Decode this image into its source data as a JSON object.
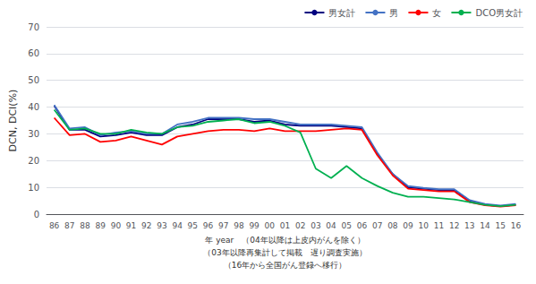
{
  "chart_data": {
    "type": "line",
    "ylabel": "DCN, DCI(%)",
    "xlabel": "年 year　（04年以降は上皮内がんを除く）\n（03年以降再集計して掲載　遅り調査実施）\n（16年から全国がん登録へ移行）",
    "categories": [
      "86",
      "87",
      "88",
      "89",
      "90",
      "91",
      "92",
      "93",
      "94",
      "95",
      "96",
      "97",
      "98",
      "99",
      "00",
      "01",
      "02",
      "03",
      "04",
      "05",
      "06",
      "07",
      "08",
      "09",
      "10",
      "11",
      "12",
      "13",
      "14",
      "15",
      "16"
    ],
    "series": [
      {
        "name": "男女計",
        "color": "#000080",
        "values": [
          40.5,
          31.5,
          31.5,
          29.0,
          29.5,
          30.5,
          29.5,
          29.5,
          32.5,
          33.5,
          35.5,
          35.5,
          35.5,
          34.5,
          35.0,
          33.5,
          33.0,
          33.0,
          33.0,
          32.5,
          32.0,
          22.5,
          15.0,
          10.0,
          9.5,
          9.0,
          9.0,
          5.0,
          3.5,
          3.0,
          3.5
        ]
      },
      {
        "name": "男",
        "color": "#4472C4",
        "values": [
          40.8,
          32.0,
          32.5,
          29.5,
          30.5,
          31.0,
          30.0,
          30.0,
          33.5,
          34.5,
          36.0,
          36.0,
          36.0,
          35.5,
          35.5,
          34.5,
          33.5,
          33.5,
          33.5,
          33.0,
          32.5,
          23.0,
          15.0,
          10.5,
          9.8,
          9.3,
          9.3,
          5.2,
          3.8,
          3.2,
          3.8
        ]
      },
      {
        "name": "女",
        "color": "#FF0000",
        "values": [
          36.0,
          29.5,
          30.0,
          27.0,
          27.5,
          29.0,
          27.5,
          26.0,
          29.0,
          30.0,
          31.0,
          31.5,
          31.5,
          31.0,
          32.0,
          31.0,
          31.0,
          31.0,
          31.5,
          32.0,
          31.5,
          22.0,
          14.5,
          9.5,
          9.0,
          8.5,
          8.5,
          4.5,
          3.3,
          2.8,
          3.3
        ]
      },
      {
        "name": "DCO男女計",
        "color": "#00B050",
        "values": [
          39.0,
          31.5,
          32.0,
          30.0,
          30.0,
          31.5,
          30.5,
          30.0,
          32.5,
          33.0,
          34.5,
          35.0,
          35.5,
          34.0,
          34.5,
          33.0,
          30.5,
          17.0,
          13.5,
          18.0,
          13.5,
          10.5,
          8.0,
          6.5,
          6.5,
          6.0,
          5.5,
          4.5,
          3.5,
          3.0,
          3.5
        ]
      }
    ],
    "ylim": [
      0,
      70
    ],
    "yticks": [
      0,
      10,
      20,
      30,
      40,
      50,
      60,
      70
    ],
    "grid": true,
    "legend": "upper right"
  }
}
